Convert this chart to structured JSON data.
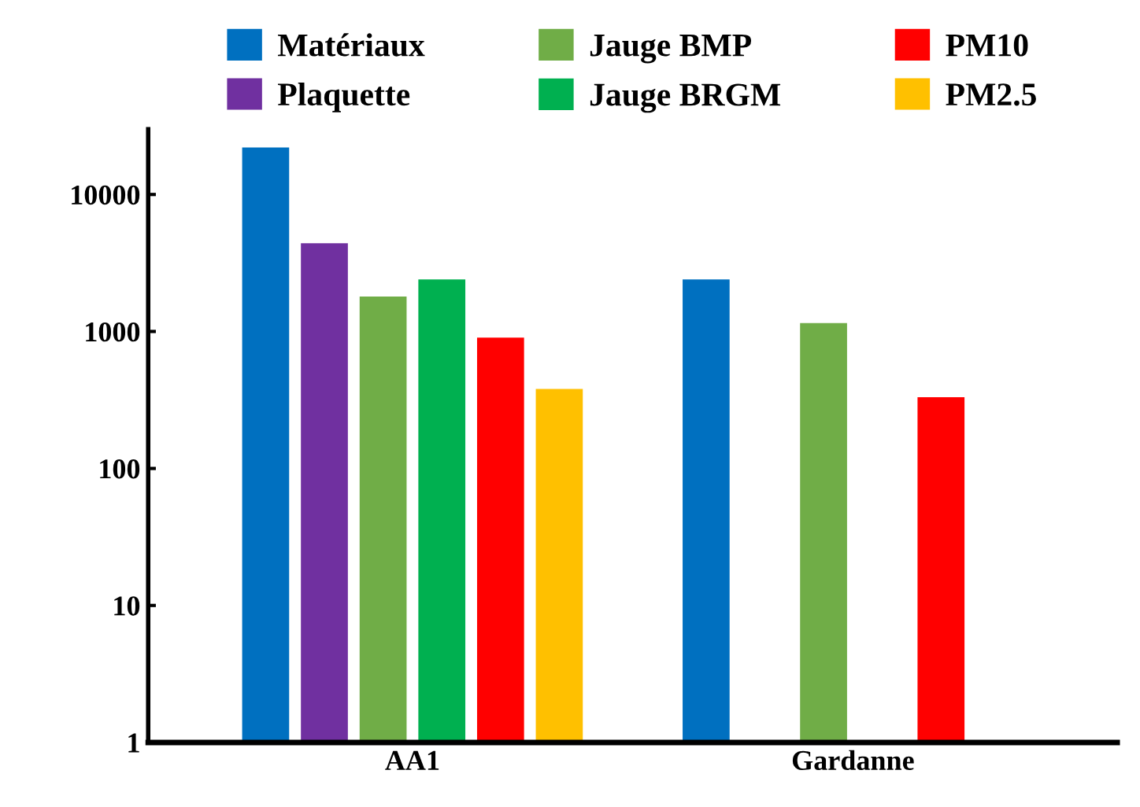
{
  "chart_data": {
    "type": "bar",
    "categories": [
      "AA1",
      "Gardanne"
    ],
    "series": [
      {
        "name": "Matériaux",
        "color": "#0070c0",
        "values": [
          22000,
          2400
        ]
      },
      {
        "name": "Plaquette",
        "color": "#7030a0",
        "values": [
          4400,
          null
        ]
      },
      {
        "name": "Jauge BMP",
        "color": "#70ad47",
        "values": [
          1800,
          1150
        ]
      },
      {
        "name": "Jauge BRGM",
        "color": "#00b050",
        "values": [
          2400,
          null
        ]
      },
      {
        "name": "PM10",
        "color": "#ff0000",
        "values": [
          900,
          330
        ]
      },
      {
        "name": "PM2.5",
        "color": "#ffc000",
        "values": [
          380,
          null
        ]
      }
    ],
    "log": "y",
    "ylim": [
      1,
      30000
    ],
    "yticks": [
      1,
      10,
      100,
      1000,
      10000
    ],
    "grid": false,
    "legend": "top"
  }
}
